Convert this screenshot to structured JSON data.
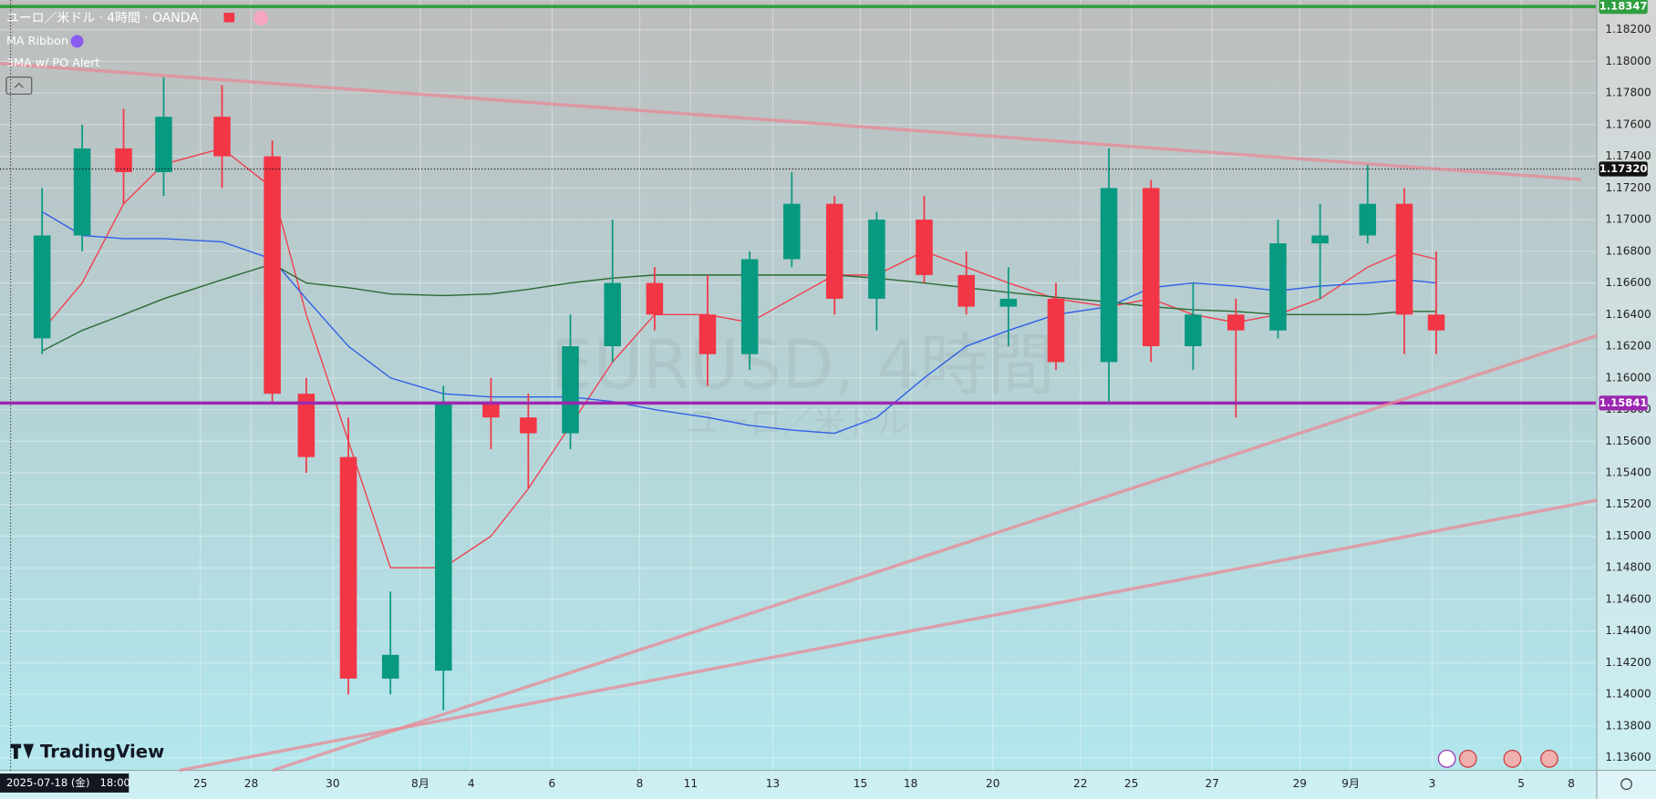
{
  "chart_data": {
    "type": "candlestick",
    "title": "ユーロ／米ドル · 4時間 · OANDA",
    "indicators": [
      "MA Ribbon",
      "3MA w/ PO Alert"
    ],
    "watermark": [
      "EURUSD, 4時間",
      "ユーロ／米ドル"
    ],
    "brand": "TradingView",
    "cursor_time_label": "2025-07-18 (金)   18:00",
    "up_color": "#089981",
    "down_color": "#f23645",
    "grid": true,
    "x": [
      6.2,
      12.1,
      18.2,
      24.1,
      32.7,
      40.1,
      45.1,
      51.3,
      57.5,
      65.3,
      72.3,
      77.8,
      84,
      90.2,
      96.4,
      104.2,
      110.4,
      116.6,
      122.9,
      129.1,
      136.1,
      142.3,
      148.5,
      155.5,
      163.3,
      169.5,
      175.7,
      182,
      188.2,
      194.4,
      201.4,
      206.8,
      211.5
    ],
    "open": [
      1.1625,
      1.169,
      1.1745,
      1.173,
      1.1765,
      1.174,
      1.159,
      1.155,
      1.141,
      1.1415,
      1.1585,
      1.1575,
      1.1565,
      1.162,
      1.166,
      1.164,
      1.1615,
      1.1675,
      1.171,
      1.165,
      1.17,
      1.1665,
      1.1645,
      1.165,
      1.161,
      1.172,
      1.162,
      1.164,
      1.163,
      1.1685,
      1.169,
      1.171,
      1.164
    ],
    "high": [
      1.172,
      1.176,
      1.177,
      1.179,
      1.1785,
      1.175,
      1.16,
      1.1575,
      1.1465,
      1.1595,
      1.16,
      1.159,
      1.164,
      1.17,
      1.167,
      1.1665,
      1.168,
      1.173,
      1.1715,
      1.1705,
      1.1715,
      1.168,
      1.167,
      1.166,
      1.1745,
      1.1725,
      1.166,
      1.165,
      1.17,
      1.171,
      1.1735,
      1.172,
      1.168
    ],
    "low": [
      1.1615,
      1.168,
      1.171,
      1.1715,
      1.172,
      1.1585,
      1.154,
      1.14,
      1.14,
      1.139,
      1.1555,
      1.153,
      1.1555,
      1.161,
      1.163,
      1.1595,
      1.1605,
      1.167,
      1.164,
      1.163,
      1.166,
      1.164,
      1.162,
      1.1605,
      1.1585,
      1.161,
      1.1605,
      1.1575,
      1.1625,
      1.165,
      1.1685,
      1.1615,
      1.1615
    ],
    "close": [
      1.169,
      1.1745,
      1.173,
      1.1765,
      1.174,
      1.159,
      1.155,
      1.141,
      1.1425,
      1.1585,
      1.1575,
      1.1565,
      1.162,
      1.166,
      1.164,
      1.1615,
      1.1675,
      1.171,
      1.165,
      1.17,
      1.1665,
      1.1645,
      1.165,
      1.161,
      1.172,
      1.162,
      1.164,
      1.163,
      1.1685,
      1.169,
      1.171,
      1.164,
      1.163
    ],
    "lines": [
      {
        "color": "#f04050",
        "values": [
          1.163,
          1.166,
          1.171,
          1.1735,
          1.1745,
          1.172,
          1.164,
          1.156,
          1.148,
          1.148,
          1.15,
          1.153,
          1.157,
          1.161,
          1.164,
          1.164,
          1.1635,
          1.165,
          1.1665,
          1.1665,
          1.168,
          1.167,
          1.166,
          1.165,
          1.1645,
          1.165,
          1.164,
          1.1635,
          1.164,
          1.165,
          1.167,
          1.168,
          1.1675
        ]
      },
      {
        "color": "#2f5fe8",
        "values": [
          1.1705,
          1.169,
          1.1688,
          1.1688,
          1.1686,
          1.1675,
          1.165,
          1.162,
          1.16,
          1.159,
          1.1588,
          1.1588,
          1.1588,
          1.1585,
          1.158,
          1.1575,
          1.157,
          1.1567,
          1.1565,
          1.1575,
          1.16,
          1.162,
          1.163,
          1.164,
          1.1645,
          1.1657,
          1.166,
          1.1658,
          1.1655,
          1.1658,
          1.166,
          1.1662,
          1.166
        ]
      },
      {
        "color": "#2a6a32",
        "values": [
          1.1617,
          1.163,
          1.164,
          1.165,
          1.1662,
          1.1672,
          1.166,
          1.1657,
          1.1653,
          1.1652,
          1.1653,
          1.1656,
          1.166,
          1.1663,
          1.1665,
          1.1665,
          1.1665,
          1.1665,
          1.1665,
          1.1663,
          1.166,
          1.1657,
          1.1654,
          1.1651,
          1.1648,
          1.1645,
          1.1643,
          1.1642,
          1.164,
          1.164,
          1.164,
          1.1642,
          1.1642
        ]
      }
    ],
    "hlines": [
      {
        "value": 1.18347,
        "label": "1.18347",
        "color": "#2e9e3e",
        "style": "solid"
      },
      {
        "value": 1.1732,
        "label": "1.17320",
        "color": "#111111",
        "style": "dotted"
      },
      {
        "value": 1.15841,
        "label": "1.15841",
        "color": "#9c27b0",
        "style": "solid"
      }
    ],
    "xlim": [
      0,
      235
    ],
    "xticks": [
      {
        "value": 29.5,
        "label": "25"
      },
      {
        "value": 37,
        "label": "28"
      },
      {
        "value": 49,
        "label": "30"
      },
      {
        "value": 61.9,
        "label": "8月"
      },
      {
        "value": 69.4,
        "label": "4"
      },
      {
        "value": 81.3,
        "label": "6"
      },
      {
        "value": 94.2,
        "label": "8"
      },
      {
        "value": 101.7,
        "label": "11"
      },
      {
        "value": 113.8,
        "label": "13"
      },
      {
        "value": 126.7,
        "label": "15"
      },
      {
        "value": 134.1,
        "label": "18"
      },
      {
        "value": 146.2,
        "label": "20"
      },
      {
        "value": 159.1,
        "label": "22"
      },
      {
        "value": 166.6,
        "label": "25"
      },
      {
        "value": 178.5,
        "label": "27"
      },
      {
        "value": 191.4,
        "label": "29"
      },
      {
        "value": 198.9,
        "label": "9月"
      },
      {
        "value": 210.9,
        "label": "3"
      },
      {
        "value": 224,
        "label": "5"
      },
      {
        "value": 231.4,
        "label": "8"
      }
    ],
    "ylim": [
      1.1352,
      1.18387
    ],
    "yticks": [
      {
        "value": 1.182,
        "label": "1.18200"
      },
      {
        "value": 1.18,
        "label": "1.18000"
      },
      {
        "value": 1.178,
        "label": "1.17800"
      },
      {
        "value": 1.176,
        "label": "1.17600"
      },
      {
        "value": 1.174,
        "label": "1.17400"
      },
      {
        "value": 1.172,
        "label": "1.17200"
      },
      {
        "value": 1.17,
        "label": "1.17000"
      },
      {
        "value": 1.168,
        "label": "1.16800"
      },
      {
        "value": 1.166,
        "label": "1.16600"
      },
      {
        "value": 1.164,
        "label": "1.16400"
      },
      {
        "value": 1.162,
        "label": "1.16200"
      },
      {
        "value": 1.16,
        "label": "1.16000"
      },
      {
        "value": 1.158,
        "label": "1.15800"
      },
      {
        "value": 1.156,
        "label": "1.15600"
      },
      {
        "value": 1.154,
        "label": "1.15400"
      },
      {
        "value": 1.152,
        "label": "1.15200"
      },
      {
        "value": 1.15,
        "label": "1.15000"
      },
      {
        "value": 1.148,
        "label": "1.14800"
      },
      {
        "value": 1.146,
        "label": "1.14600"
      },
      {
        "value": 1.144,
        "label": "1.14400"
      },
      {
        "value": 1.142,
        "label": "1.14200"
      },
      {
        "value": 1.14,
        "label": "1.14000"
      },
      {
        "value": 1.138,
        "label": "1.13800"
      },
      {
        "value": 1.136,
        "label": "1.13600"
      }
    ]
  }
}
